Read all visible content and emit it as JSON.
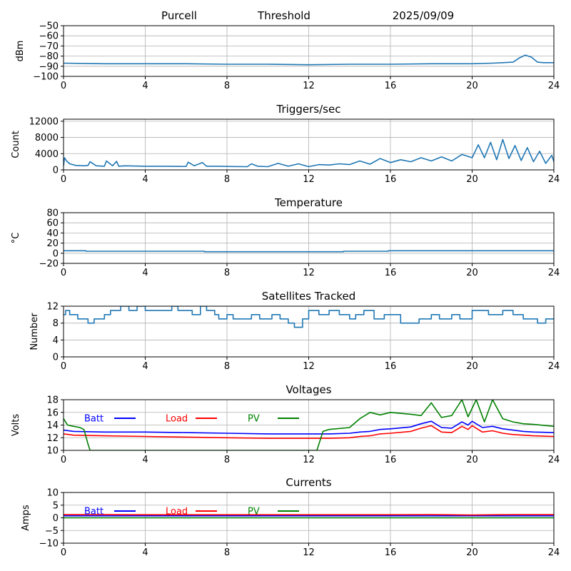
{
  "header": {
    "site": "Purcell",
    "mode": "Threshold",
    "date": "2025/09/09"
  },
  "colors": {
    "default_series": "#1f77b4",
    "batt": "#0000ff",
    "load": "#ff0000",
    "pv": "#008000",
    "grid": "#b0b0b0"
  },
  "chart_data": [
    {
      "id": "threshold",
      "type": "line",
      "title": "",
      "xlabel": "",
      "ylabel": "dBm",
      "xlim": [
        0,
        24
      ],
      "ylim": [
        -100,
        -50
      ],
      "xticks": [
        0,
        4,
        8,
        12,
        16,
        20,
        24
      ],
      "yticks": [
        -100,
        -90,
        -80,
        -70,
        -60,
        -50
      ],
      "grid": true,
      "series": [
        {
          "color_key": "default_series",
          "x": [
            0,
            2,
            4,
            6,
            8,
            10,
            12,
            14,
            16,
            18,
            20,
            21,
            21.5,
            22,
            22.3,
            22.6,
            22.9,
            23.2,
            23.5,
            24
          ],
          "y": [
            -87,
            -87.5,
            -87.5,
            -87.5,
            -88,
            -88,
            -88.5,
            -88,
            -88,
            -87.5,
            -87.5,
            -87,
            -86.5,
            -86,
            -82,
            -79,
            -81,
            -86,
            -86.5,
            -86.5
          ]
        }
      ]
    },
    {
      "id": "triggers",
      "type": "line",
      "title": "Triggers/sec",
      "xlabel": "",
      "ylabel": "Count",
      "xlim": [
        0,
        24
      ],
      "ylim": [
        0,
        12500
      ],
      "xticks": [
        0,
        4,
        8,
        12,
        16,
        20,
        24
      ],
      "yticks": [
        0,
        4000,
        8000,
        12000
      ],
      "grid": true,
      "series": [
        {
          "color_key": "default_series",
          "x": [
            0,
            0.05,
            0.15,
            0.3,
            0.6,
            1.0,
            1.2,
            1.3,
            1.6,
            2.0,
            2.1,
            2.4,
            2.6,
            2.7,
            3.0,
            4.0,
            5.0,
            6.0,
            6.1,
            6.4,
            6.8,
            7.0,
            7.5,
            8.0,
            9.0,
            9.2,
            9.5,
            10,
            10.5,
            11,
            11.5,
            12,
            12.5,
            13,
            13.5,
            14,
            14.5,
            15,
            15.5,
            16,
            16.5,
            17,
            17.5,
            18,
            18.5,
            19,
            19.5,
            20,
            20.3,
            20.6,
            20.9,
            21.2,
            21.5,
            21.8,
            22.1,
            22.4,
            22.7,
            23.0,
            23.3,
            23.6,
            23.9,
            24
          ],
          "y": [
            900,
            3000,
            2200,
            1500,
            1100,
            1000,
            1100,
            2000,
            1000,
            900,
            2200,
            1000,
            2100,
            900,
            1000,
            900,
            900,
            850,
            1900,
            1000,
            1800,
            900,
            900,
            850,
            800,
            1500,
            900,
            800,
            1600,
            900,
            1500,
            800,
            1300,
            1200,
            1500,
            1300,
            2200,
            1400,
            2800,
            1800,
            2500,
            2000,
            3000,
            2200,
            3200,
            2200,
            3800,
            3000,
            6200,
            3000,
            6800,
            2500,
            7500,
            2800,
            6000,
            2300,
            5500,
            2000,
            4600,
            1600,
            3600,
            2000
          ]
        }
      ]
    },
    {
      "id": "temperature",
      "type": "line",
      "title": "Temperature",
      "xlabel": "",
      "ylabel": "°C",
      "xlim": [
        0,
        24
      ],
      "ylim": [
        -20,
        80
      ],
      "xticks": [
        0,
        4,
        8,
        12,
        16,
        20,
        24
      ],
      "yticks": [
        -20,
        0,
        20,
        40,
        60,
        80
      ],
      "grid": true,
      "series": [
        {
          "color_key": "default_series",
          "x": [
            0,
            1.1,
            1.1,
            6.9,
            6.9,
            13.7,
            13.7,
            15.9,
            15.9,
            24
          ],
          "y": [
            5,
            5,
            4,
            4,
            3,
            3,
            4,
            4,
            5,
            5
          ]
        }
      ]
    },
    {
      "id": "satellites",
      "type": "line",
      "title": "Satellites Tracked",
      "xlabel": "",
      "ylabel": "Number",
      "xlim": [
        0,
        24
      ],
      "ylim": [
        0,
        12
      ],
      "xticks": [
        0,
        4,
        8,
        12,
        16,
        20,
        24
      ],
      "yticks": [
        0,
        4,
        8,
        12
      ],
      "grid": true,
      "series": [
        {
          "color_key": "default_series",
          "step": true,
          "x": [
            0,
            0.1,
            0.3,
            0.7,
            1.2,
            1.5,
            2.0,
            2.3,
            2.8,
            3.2,
            3.6,
            4.0,
            5.0,
            5.3,
            5.6,
            6.3,
            6.7,
            7.0,
            7.4,
            7.6,
            8.0,
            8.3,
            8.8,
            9.2,
            9.6,
            10.2,
            10.6,
            11.0,
            11.3,
            11.7,
            12.0,
            12.5,
            13.0,
            13.5,
            14.0,
            14.3,
            14.7,
            15.2,
            15.7,
            16.5,
            17.0,
            17.4,
            18.0,
            18.4,
            19.0,
            19.4,
            20.0,
            20.8,
            21.5,
            22.0,
            22.5,
            23.2,
            23.6,
            24
          ],
          "y": [
            10,
            11,
            10,
            9,
            8,
            9,
            10,
            11,
            12,
            11,
            12,
            11,
            11,
            12,
            11,
            10,
            12,
            11,
            10,
            9,
            10,
            9,
            9,
            10,
            9,
            10,
            9,
            8,
            7,
            9,
            11,
            10,
            11,
            10,
            9,
            10,
            11,
            9,
            10,
            8,
            8,
            9,
            10,
            9,
            10,
            9,
            11,
            10,
            11,
            10,
            9,
            8,
            9,
            9
          ]
        }
      ]
    },
    {
      "id": "voltages",
      "type": "line",
      "title": "Voltages",
      "xlabel": "",
      "ylabel": "Volts",
      "xlim": [
        0,
        24
      ],
      "ylim": [
        10,
        18
      ],
      "xticks": [
        0,
        4,
        8,
        12,
        16,
        20,
        24
      ],
      "yticks": [
        10,
        12,
        14,
        16,
        18
      ],
      "grid": true,
      "legend": [
        "Batt",
        "Load",
        "PV"
      ],
      "series": [
        {
          "name": "Batt",
          "color_key": "batt",
          "x": [
            0,
            0.5,
            2,
            4,
            6,
            8,
            10,
            12,
            13,
            14,
            14.5,
            15,
            15.5,
            16,
            17,
            17.5,
            18,
            18.5,
            19,
            19.5,
            19.8,
            20,
            20.5,
            21,
            21.5,
            22,
            22.5,
            23,
            24
          ],
          "y": [
            13.2,
            13.0,
            12.9,
            12.9,
            12.8,
            12.7,
            12.6,
            12.6,
            12.6,
            12.7,
            12.9,
            13.0,
            13.3,
            13.4,
            13.7,
            14.2,
            14.6,
            13.6,
            13.5,
            14.5,
            14.0,
            14.6,
            13.6,
            13.8,
            13.4,
            13.2,
            13.0,
            12.9,
            12.8
          ]
        },
        {
          "name": "Load",
          "color_key": "load",
          "x": [
            0,
            0.5,
            2,
            4,
            6,
            8,
            10,
            12,
            13,
            14,
            14.5,
            15,
            15.5,
            16,
            17,
            17.5,
            18,
            18.5,
            19,
            19.5,
            19.8,
            20,
            20.5,
            21,
            21.5,
            22,
            22.5,
            23,
            24
          ],
          "y": [
            12.6,
            12.4,
            12.3,
            12.2,
            12.1,
            12.0,
            11.9,
            11.9,
            11.9,
            12.0,
            12.2,
            12.3,
            12.6,
            12.7,
            13.0,
            13.5,
            13.9,
            12.9,
            12.8,
            13.8,
            13.3,
            13.9,
            12.9,
            13.1,
            12.7,
            12.5,
            12.4,
            12.3,
            12.2
          ]
        },
        {
          "name": "PV",
          "color_key": "pv",
          "x": [
            0,
            0.2,
            0.5,
            0.8,
            1.0,
            1.2,
            1.3,
            12.4,
            12.7,
            13.0,
            14.0,
            14.5,
            15.0,
            15.5,
            16.0,
            17.0,
            17.5,
            18.0,
            18.5,
            19.0,
            19.5,
            19.8,
            20.2,
            20.6,
            21.0,
            21.5,
            22.0,
            22.5,
            23.0,
            24.0
          ],
          "y": [
            15.0,
            14.0,
            13.8,
            13.6,
            13.3,
            11.0,
            10.0,
            10.0,
            13.0,
            13.3,
            13.6,
            15.0,
            16.0,
            15.6,
            16.0,
            15.7,
            15.5,
            17.5,
            15.2,
            15.5,
            18.0,
            15.3,
            18.0,
            14.5,
            18.0,
            15.0,
            14.5,
            14.2,
            14.1,
            13.8
          ]
        }
      ]
    },
    {
      "id": "currents",
      "type": "line",
      "title": "Currents",
      "xlabel": "",
      "ylabel": "Amps",
      "xlim": [
        0,
        24
      ],
      "ylim": [
        -10,
        10
      ],
      "xticks": [
        0,
        4,
        8,
        12,
        16,
        20,
        24
      ],
      "yticks": [
        -10,
        -5,
        0,
        5,
        10
      ],
      "grid": true,
      "legend": [
        "Batt",
        "Load",
        "PV"
      ],
      "series": [
        {
          "name": "Batt",
          "color_key": "batt",
          "x": [
            0,
            24
          ],
          "y": [
            0.8,
            0.8
          ]
        },
        {
          "name": "Load",
          "color_key": "load",
          "x": [
            0,
            2,
            4,
            6,
            8,
            10,
            12,
            14,
            16,
            18,
            20,
            22,
            24
          ],
          "y": [
            1.3,
            1.3,
            1.2,
            1.2,
            1.2,
            1.2,
            1.2,
            1.2,
            1.2,
            1.3,
            1.1,
            1.3,
            1.3
          ]
        },
        {
          "name": "PV",
          "color_key": "pv",
          "x": [
            0,
            24
          ],
          "y": [
            0,
            0
          ]
        }
      ]
    }
  ]
}
